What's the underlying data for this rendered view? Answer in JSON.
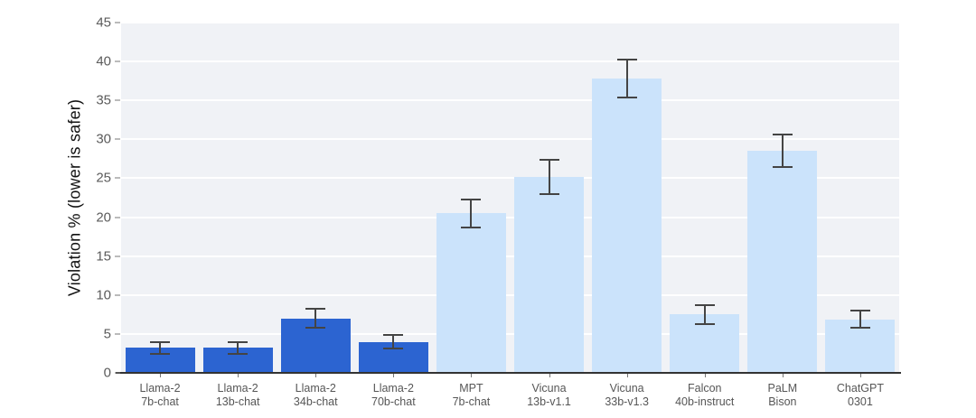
{
  "chart_data": {
    "type": "bar",
    "title": "",
    "xlabel": "",
    "ylabel": "Violation % (lower is safer)",
    "ylim": [
      0,
      45
    ],
    "yticks": [
      0,
      5,
      10,
      15,
      20,
      25,
      30,
      35,
      40,
      45
    ],
    "grid": "horizontal",
    "legend": "none",
    "categories": [
      "Llama-2\n7b-chat",
      "Llama-2\n13b-chat",
      "Llama-2\n34b-chat",
      "Llama-2\n70b-chat",
      "MPT\n7b-chat",
      "Vicuna\n13b-v1.1",
      "Vicuna\n33b-v1.3",
      "Falcon\n40b-instruct",
      "PaLM\nBison",
      "ChatGPT\n0301"
    ],
    "series": [
      {
        "name": "Violation %",
        "values": [
          3.2,
          3.2,
          7.0,
          4.0,
          20.5,
          25.2,
          37.8,
          7.5,
          28.5,
          6.9
        ],
        "errors": [
          0.8,
          0.8,
          1.2,
          0.9,
          1.8,
          2.2,
          2.4,
          1.2,
          2.1,
          1.1
        ]
      }
    ],
    "bar_colors": [
      "#2c64d1",
      "#2c64d1",
      "#2c64d1",
      "#2c64d1",
      "#cbe3fb",
      "#cbe3fb",
      "#cbe3fb",
      "#cbe3fb",
      "#cbe3fb",
      "#cbe3fb"
    ],
    "colors": {
      "panel_background": "#f0f2f6",
      "gridline": "#ffffff",
      "axis_line": "#333333",
      "tick_mark": "#777777",
      "tick_label": "#5b5b5b",
      "x_label": "#565656",
      "error_bar": "#444444",
      "axis_title": "#111111"
    }
  }
}
